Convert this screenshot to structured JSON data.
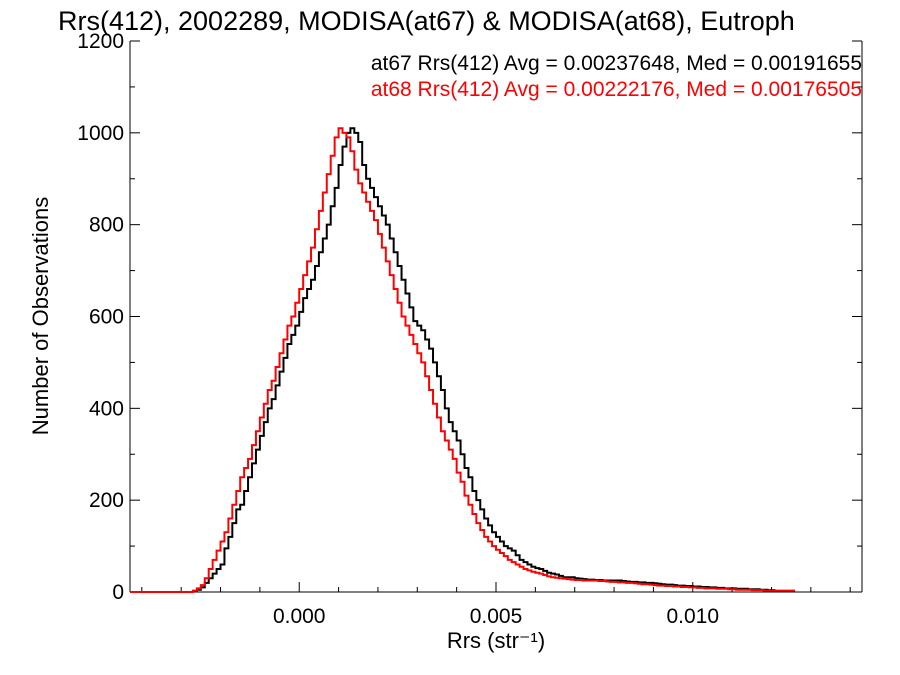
{
  "chart_data": {
    "type": "histogram",
    "title": "Rrs(412), 2002289, MODISA(at67) & MODISA(at68), Eutroph",
    "xlabel": "Rrs (str⁻¹)",
    "ylabel": "Number of Observations",
    "xlim": [
      -0.0043,
      0.0143
    ],
    "ylim": [
      0,
      1200
    ],
    "xticks": [
      {
        "value": 0.0,
        "label": "0.000"
      },
      {
        "value": 0.005,
        "label": "0.005"
      },
      {
        "value": 0.01,
        "label": "0.010"
      }
    ],
    "yticks": [
      {
        "value": 0,
        "label": "0"
      },
      {
        "value": 200,
        "label": "200"
      },
      {
        "value": 400,
        "label": "400"
      },
      {
        "value": 600,
        "label": "600"
      },
      {
        "value": 800,
        "label": "800"
      },
      {
        "value": 1000,
        "label": "1000"
      },
      {
        "value": 1200,
        "label": "1200"
      }
    ],
    "bin_width": 0.0001,
    "x_start": -0.0043,
    "grid": false,
    "legend_position": "top-right",
    "series": [
      {
        "name": "at67",
        "color": "#000000",
        "annotation": "at67 Rrs(412) Avg = 0.00237648, Med = 0.00191655",
        "counts": [
          0,
          0,
          0,
          0,
          0,
          0,
          0,
          0,
          0,
          0,
          0,
          0,
          0,
          0,
          0,
          0,
          2,
          5,
          10,
          20,
          30,
          40,
          50,
          60,
          95,
          120,
          150,
          180,
          190,
          220,
          250,
          280,
          310,
          340,
          370,
          400,
          420,
          450,
          480,
          510,
          540,
          560,
          580,
          610,
          640,
          660,
          680,
          710,
          740,
          770,
          800,
          840,
          880,
          930,
          970,
          1000,
          1010,
          1000,
          980,
          930,
          900,
          880,
          860,
          840,
          820,
          800,
          770,
          740,
          710,
          680,
          650,
          620,
          590,
          580,
          570,
          550,
          530,
          500,
          470,
          440,
          400,
          370,
          350,
          330,
          300,
          270,
          250,
          220,
          200,
          180,
          160,
          145,
          130,
          120,
          110,
          100,
          95,
          90,
          80,
          70,
          65,
          60,
          55,
          52,
          50,
          46,
          42,
          40,
          38,
          35,
          32,
          32,
          32,
          30,
          29,
          28,
          27,
          27,
          26,
          26,
          25,
          25,
          25,
          25,
          25,
          24,
          23,
          22,
          22,
          21,
          21,
          20,
          20,
          19,
          18,
          17,
          16,
          16,
          15,
          14,
          14,
          13,
          13,
          12,
          12,
          11,
          11,
          10,
          10,
          9,
          9,
          8,
          8,
          8,
          7,
          7,
          7,
          6,
          6,
          6,
          5,
          5,
          4,
          4
        ]
      },
      {
        "name": "at68",
        "color": "#ff0000",
        "annotation": "at68 Rrs(412) Avg = 0.00222176, Med = 0.00176505",
        "counts": [
          0,
          0,
          0,
          0,
          0,
          0,
          0,
          0,
          0,
          0,
          0,
          0,
          0,
          0,
          0,
          0,
          3,
          8,
          15,
          30,
          50,
          70,
          90,
          110,
          130,
          160,
          190,
          220,
          250,
          270,
          290,
          320,
          350,
          380,
          410,
          440,
          460,
          490,
          520,
          550,
          580,
          600,
          630,
          660,
          690,
          720,
          750,
          790,
          830,
          870,
          910,
          950,
          990,
          1010,
          1000,
          990,
          960,
          920,
          890,
          870,
          850,
          830,
          810,
          780,
          750,
          720,
          690,
          660,
          630,
          600,
          580,
          560,
          540,
          520,
          500,
          470,
          440,
          410,
          380,
          350,
          330,
          310,
          290,
          260,
          240,
          210,
          190,
          170,
          150,
          135,
          120,
          110,
          100,
          92,
          85,
          78,
          70,
          65,
          60,
          55,
          50,
          47,
          44,
          42,
          40,
          37,
          34,
          32,
          31,
          30,
          29,
          28,
          27,
          26,
          26,
          25,
          25,
          25,
          25,
          24,
          24,
          23,
          22,
          22,
          21,
          21,
          20,
          20,
          19,
          18,
          17,
          17,
          16,
          15,
          14,
          14,
          13,
          13,
          12,
          12,
          11,
          11,
          10,
          10,
          9,
          9,
          8,
          8,
          8,
          7,
          7,
          7,
          6,
          6,
          5,
          5,
          5,
          5,
          4,
          4,
          4,
          3,
          3,
          3,
          3,
          3,
          3,
          3,
          3
        ]
      }
    ]
  }
}
